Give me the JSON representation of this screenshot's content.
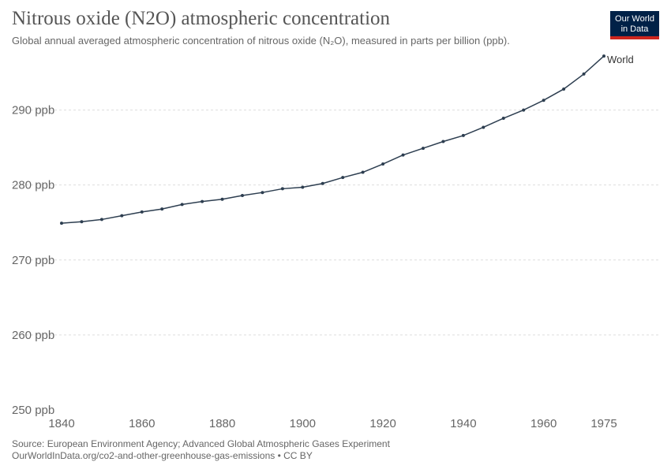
{
  "header": {
    "title": "Nitrous oxide (N2O) atmospheric concentration",
    "subtitle": "Global annual averaged atmospheric concentration of nitrous oxide (N₂O), measured in parts per billion (ppb)."
  },
  "logo": {
    "line1": "Our World",
    "line2": "in Data"
  },
  "footer": {
    "source": "Source: European Environment Agency; Advanced Global Atmospheric Gases Experiment",
    "url_license": "OurWorldInData.org/co2-and-other-greenhouse-gas-emissions • CC BY"
  },
  "colors": {
    "series": "#2d3e50",
    "grid": "#dddddd",
    "logo_bg": "#002147",
    "logo_accent": "#ce261e"
  },
  "chart_data": {
    "type": "line",
    "title": "Nitrous oxide (N2O) atmospheric concentration",
    "xlabel": "",
    "ylabel": "",
    "xlim": [
      1840,
      1975
    ],
    "ylim": [
      250,
      297
    ],
    "x_ticks": [
      1840,
      1860,
      1880,
      1900,
      1920,
      1940,
      1960,
      1975
    ],
    "y_ticks": [
      250,
      260,
      270,
      280,
      290
    ],
    "y_tick_labels": [
      "250 ppb",
      "260 ppb",
      "270 ppb",
      "280 ppb",
      "290 ppb"
    ],
    "grid": "horizontal-dashed",
    "series": [
      {
        "name": "World",
        "x": [
          1840,
          1845,
          1850,
          1855,
          1860,
          1865,
          1870,
          1875,
          1880,
          1885,
          1890,
          1895,
          1900,
          1905,
          1910,
          1915,
          1920,
          1925,
          1930,
          1935,
          1940,
          1945,
          1950,
          1955,
          1960,
          1965,
          1970,
          1975
        ],
        "y": [
          274.9,
          275.1,
          275.4,
          275.9,
          276.4,
          276.8,
          277.4,
          277.8,
          278.1,
          278.6,
          279.0,
          279.5,
          279.7,
          280.2,
          281.0,
          281.7,
          282.8,
          284.0,
          284.9,
          285.8,
          286.6,
          287.7,
          288.9,
          290.0,
          291.3,
          292.8,
          294.8,
          297.2
        ]
      }
    ]
  }
}
